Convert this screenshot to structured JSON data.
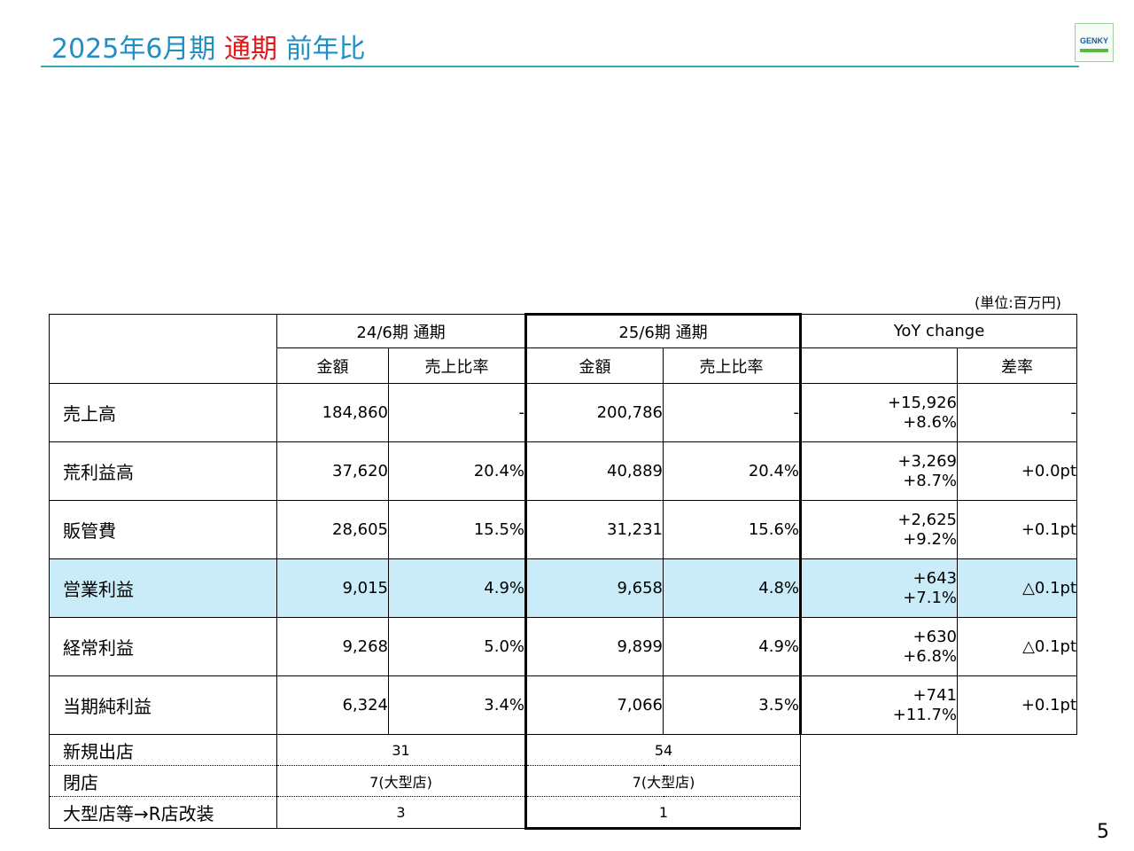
{
  "header": {
    "title_prefix": "2025年6月期 ",
    "title_highlight": "通期",
    "title_suffix": " 前年比",
    "logo_text": "GENKY"
  },
  "unit_note": "(単位:百万円)",
  "page_number": "5",
  "table": {
    "period_24": "24/6期 通期",
    "period_25": "25/6期 通期",
    "yoy": "YoY change",
    "col_amount": "金額",
    "col_ratio": "売上比率",
    "col_diff_ratio": "差率",
    "rows": [
      {
        "label": "売上高",
        "a24": "184,860",
        "r24": "-",
        "a25": "200,786",
        "r25": "-",
        "yoy1": "+15,926",
        "yoy2": "+8.6%",
        "diff": "-"
      },
      {
        "label": "荒利益高",
        "a24": "37,620",
        "r24": "20.4%",
        "a25": "40,889",
        "r25": "20.4%",
        "yoy1": "+3,269",
        "yoy2": "+8.7%",
        "diff": "+0.0pt"
      },
      {
        "label": "販管費",
        "a24": "28,605",
        "r24": "15.5%",
        "a25": "31,231",
        "r25": "15.6%",
        "yoy1": "+2,625",
        "yoy2": "+9.2%",
        "diff": "+0.1pt"
      },
      {
        "label": "営業利益",
        "a24": "9,015",
        "r24": "4.9%",
        "a25": "9,658",
        "r25": "4.8%",
        "yoy1": "+643",
        "yoy2": "+7.1%",
        "diff": "△0.1pt"
      },
      {
        "label": "経常利益",
        "a24": "9,268",
        "r24": "5.0%",
        "a25": "9,899",
        "r25": "4.9%",
        "yoy1": "+630",
        "yoy2": "+6.8%",
        "diff": "△0.1pt"
      },
      {
        "label": "当期純利益",
        "a24": "6,324",
        "r24": "3.4%",
        "a25": "7,066",
        "r25": "3.5%",
        "yoy1": "+741",
        "yoy2": "+11.7%",
        "diff": "+0.1pt"
      }
    ],
    "store_rows": [
      {
        "label": "新規出店",
        "v24": "31",
        "v25": "54"
      },
      {
        "label": "閉店",
        "v24": "7(大型店)",
        "v25": "7(大型店)"
      },
      {
        "label": "大型店等→R店改装",
        "v24": "3",
        "v25": "1"
      }
    ]
  }
}
